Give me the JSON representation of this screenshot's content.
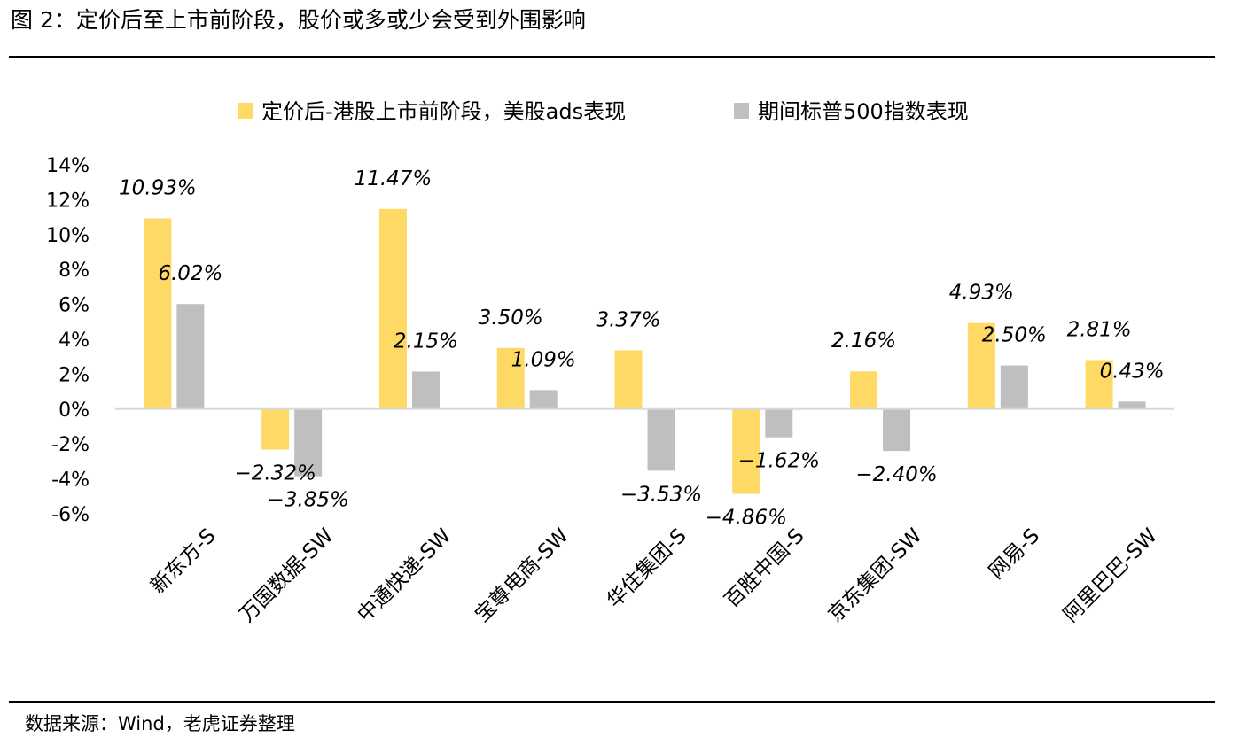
{
  "page": {
    "title": "图 2：定价后至上市前阶段，股价或多或少会受到外围影响",
    "source": "数据来源：Wind，老虎证券整理"
  },
  "chart_data": {
    "type": "bar",
    "title": "",
    "xlabel": "",
    "ylabel": "",
    "categories": [
      "新东方-S",
      "万国数据-SW",
      "中通快递-SW",
      "宝尊电商-SW",
      "华住集团-S",
      "百胜中国-S",
      "京东集团-SW",
      "网易-S",
      "阿里巴巴-SW"
    ],
    "series": [
      {
        "name": "定价后-港股上市前阶段，美股ads表现",
        "color": "#FFD966",
        "values": [
          10.93,
          -2.32,
          11.47,
          3.5,
          3.37,
          -4.86,
          2.16,
          4.93,
          2.81
        ],
        "labels": [
          "10.93%",
          "-2.32%",
          "11.47%",
          "3.50%",
          "3.37%",
          "-4.86%",
          "2.16%",
          "4.93%",
          "2.81%"
        ]
      },
      {
        "name": "期间标普500指数表现",
        "color": "#BFBFBF",
        "values": [
          6.02,
          -3.85,
          2.15,
          1.09,
          -3.53,
          -1.62,
          -2.4,
          2.5,
          0.43
        ],
        "labels": [
          "6.02%",
          "-3.85%",
          "2.15%",
          "1.09%",
          "-3.53%",
          "-1.62%",
          "-2.40%",
          "2.50%",
          "0.43%"
        ]
      }
    ],
    "ylim": [
      -6,
      14
    ],
    "yticks": [
      "14%",
      "12%",
      "10%",
      "8%",
      "6%",
      "4%",
      "2%",
      "0%",
      "-2%",
      "-4%",
      "-6%"
    ],
    "ytick_values": [
      14,
      12,
      10,
      8,
      6,
      4,
      2,
      0,
      -2,
      -4,
      -6
    ],
    "grid": false,
    "legend_position": "top"
  }
}
